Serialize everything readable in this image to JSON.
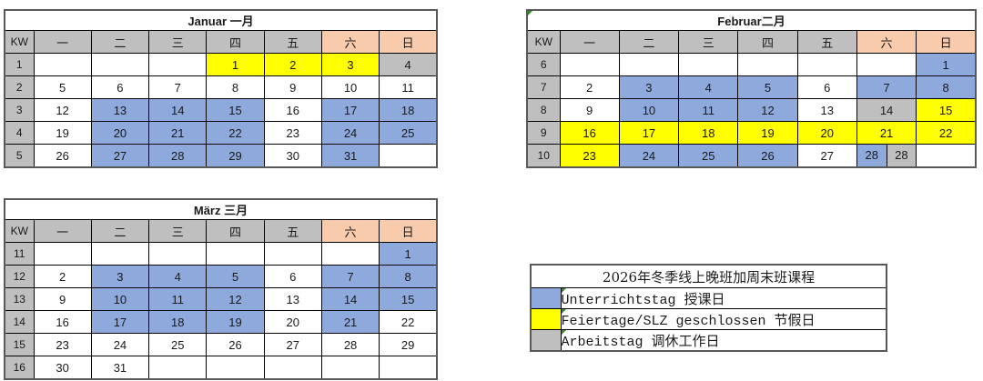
{
  "colors": {
    "course": "#8EA9DB",
    "holiday": "#FFFF00",
    "workday": "#BFBFBF",
    "header_gray": "#BFBFBF",
    "weekend_header": "#F8CBAD",
    "white": "#FFFFFF",
    "marker_green": "#2E8B2E"
  },
  "weekday_headers": [
    "KW",
    "一",
    "二",
    "三",
    "四",
    "五",
    "六",
    "日"
  ],
  "calendars": [
    {
      "id": "januar",
      "title": "Januar 一月",
      "marker": false,
      "weeks": [
        {
          "kw": "1",
          "cells": [
            "|",
            "|",
            "|",
            "1|h",
            "2|h",
            "3|h",
            "4|w"
          ]
        },
        {
          "kw": "2",
          "cells": [
            "5|",
            "6|",
            "7|",
            "8|",
            "9|",
            "10|",
            "11|"
          ]
        },
        {
          "kw": "3",
          "cells": [
            "12|",
            "13|c",
            "14|c",
            "15|c",
            "16|",
            "17|c",
            "18|c"
          ]
        },
        {
          "kw": "4",
          "cells": [
            "19|",
            "20|c",
            "21|c",
            "22|c",
            "23|",
            "24|c",
            "25|c"
          ]
        },
        {
          "kw": "5",
          "cells": [
            "26|",
            "27|c",
            "28|c",
            "29|c",
            "30|",
            "31|c",
            "|"
          ]
        }
      ]
    },
    {
      "id": "februar",
      "title": "Februar二月",
      "marker": true,
      "weeks": [
        {
          "kw": "6",
          "cells": [
            "|",
            "|",
            "|",
            "|",
            "|",
            "|",
            "1|c"
          ]
        },
        {
          "kw": "7",
          "cells": [
            "2|",
            "3|c",
            "4|c",
            "5|c",
            "6|",
            "7|c",
            "8|c"
          ]
        },
        {
          "kw": "8",
          "cells": [
            "9|",
            "10|c",
            "11|c",
            "12|c",
            "13|",
            "14|w",
            "15|h"
          ]
        },
        {
          "kw": "9",
          "cells": [
            "16|h",
            "17|h",
            "18|h",
            "19|h",
            "20|h",
            "21|h",
            "22|h"
          ]
        },
        {
          "kw": "10",
          "cells": [
            "23|h",
            "24|c",
            "25|c",
            "26|c",
            "27|",
            {
              "a": "28|c",
              "b": "28|w"
            },
            "|"
          ]
        }
      ]
    },
    {
      "id": "maerz",
      "title": "März 三月",
      "marker": false,
      "weeks": [
        {
          "kw": "11",
          "cells": [
            "|",
            "|",
            "|",
            "|",
            "|",
            "|",
            "1|c"
          ]
        },
        {
          "kw": "12",
          "cells": [
            "2|",
            "3|c",
            "4|c",
            "5|c",
            "6|",
            "7|c",
            "8|c"
          ]
        },
        {
          "kw": "13",
          "cells": [
            "9|",
            "10|c",
            "11|c",
            "12|c",
            "13|",
            "14|c",
            "15|c"
          ]
        },
        {
          "kw": "14",
          "cells": [
            "16|",
            "17|c",
            "18|c",
            "19|c",
            "20|",
            "21|c",
            "22|"
          ]
        },
        {
          "kw": "15",
          "cells": [
            "23|",
            "24|",
            "25|",
            "26|",
            "27|",
            "28|",
            "29|"
          ]
        },
        {
          "kw": "16",
          "cells": [
            "30|",
            "31|",
            "|",
            "|",
            "|",
            "|",
            "|"
          ]
        }
      ]
    }
  ],
  "legend": {
    "title": "2026年冬季线上晚班加周末班课程",
    "items": [
      {
        "code": "c",
        "label": "Unterrichtstag 授课日"
      },
      {
        "code": "h",
        "label": "Feiertage/SLZ geschlossen 节假日"
      },
      {
        "code": "w",
        "label": "Arbeitstag 调休工作日"
      }
    ]
  }
}
